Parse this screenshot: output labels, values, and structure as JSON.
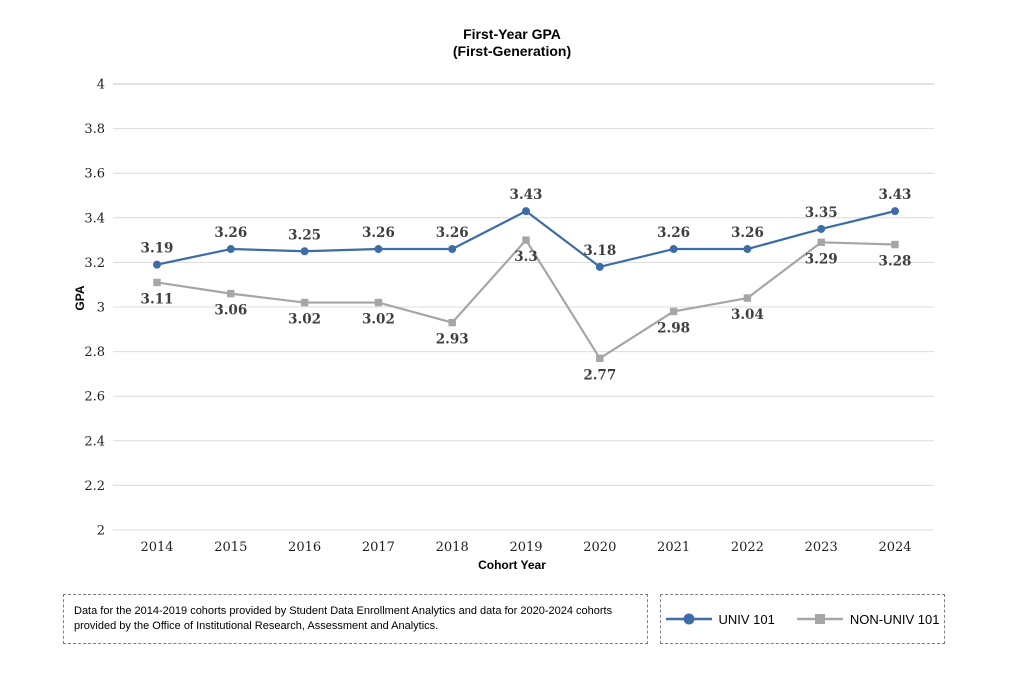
{
  "title": {
    "line1": "First-Year GPA",
    "line2": "(First-Generation)"
  },
  "chart_data": {
    "type": "line",
    "title": "First-Year GPA (First-Generation)",
    "x": [
      "2014",
      "2015",
      "2016",
      "2017",
      "2018",
      "2019",
      "2020",
      "2021",
      "2022",
      "2023",
      "2024"
    ],
    "series": [
      {
        "name": "UNIV 101",
        "color": "#3d6da6",
        "marker": "circle",
        "label_position": "above",
        "values": [
          3.19,
          3.26,
          3.25,
          3.26,
          3.26,
          3.43,
          3.18,
          3.26,
          3.26,
          3.35,
          3.43
        ]
      },
      {
        "name": "NON-UNIV 101",
        "color": "#a6a6a6",
        "marker": "square",
        "label_position": "below",
        "values": [
          3.11,
          3.06,
          3.02,
          3.02,
          2.93,
          3.3,
          2.77,
          2.98,
          3.04,
          3.29,
          3.28
        ]
      }
    ],
    "xlabel": "Cohort Year",
    "ylabel": "GPA",
    "ylim": [
      2,
      4
    ],
    "ytick_step": 0.2,
    "grid": true,
    "data_labels": true,
    "legend_position": "bottom-right"
  },
  "footnote": {
    "text": "Data for the 2014-2019 cohorts provided by Student Data Enrollment Analytics and data for 2020-2024 cohorts provided by the Office of Institutional Research, Assessment and Analytics."
  },
  "colors": {
    "gridline": "#dcdcdc",
    "gridline_top": "#c4c4c4",
    "tick_label": "#1f1f1f",
    "data_label": "#3f3f3f",
    "box_border": "#7f7f7f",
    "univ101_blue": "#3d6da6",
    "non_univ101_gray": "#a6a6a6"
  }
}
